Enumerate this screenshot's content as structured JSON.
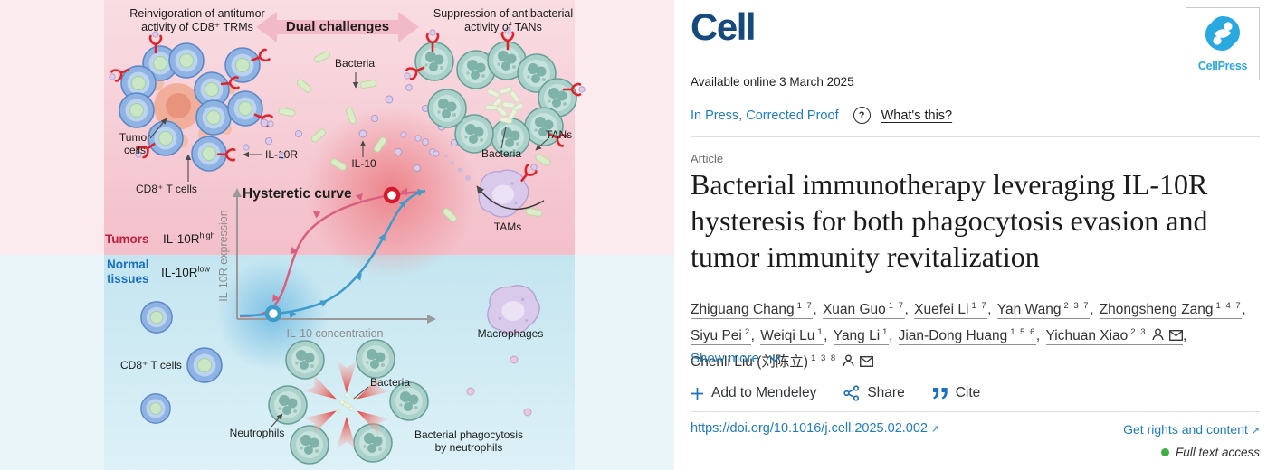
{
  "abstract": {
    "labels": {
      "reinvigoration": "Reinvigoration of antitumor\nactivity of CD8⁺ TRMs",
      "dual_challenges": "Dual challenges",
      "suppression": "Suppression of antibacterial\nactivity of TANs",
      "bacteria_top": "Bacteria",
      "tumor_cells": "Tumor\ncells",
      "cd8_top": "CD8⁺ T cells",
      "il10r": "IL-10R",
      "il10": "IL-10",
      "bacteria_right": "Bacteria",
      "tans": "TANs",
      "hysteretic_curve": "Hysteretic curve",
      "tams": "TAMs",
      "tumors": "Tumors",
      "il10r_high_base": "IL-10R",
      "il10r_high_sup": "high",
      "normal_tissues": "Normal\ntissues",
      "il10r_low_base": "IL-10R",
      "il10r_low_sup": "low",
      "y_axis": "IL-10R expression",
      "x_axis": "IL-10 concentration",
      "macrophages": "Macrophages",
      "cd8_bottom": "CD8⁺ T cells",
      "neutrophils": "Neutrophils",
      "bacteria_bottom": "Bacteria",
      "phagocytosis": "Bacterial phagocytosis\nby neutrophils"
    },
    "colors": {
      "tumor_zone_pink": "#f3bfca",
      "normal_zone_blue": "#c4e5f0",
      "tumors_label": "#c0203a",
      "normal_label": "#1a6fc0",
      "ascending_curve": "#3d9ccc",
      "descending_curve": "#d95f7f",
      "receptor_red": "#e0232a"
    }
  },
  "journal": {
    "name": "Cell",
    "publisher": "CellPress"
  },
  "meta": {
    "available_online": "Available online 3 March 2025",
    "status": "In Press, Corrected Proof",
    "help_icon": "?",
    "whats_this": "What's this?",
    "article_type": "Article"
  },
  "title": "Bacterial immunotherapy leveraging IL-10R hysteresis for both phagocytosis evasion and tumor immunity revitalization",
  "authors": [
    {
      "name": "Zhiguang Chang",
      "sup": "1 7",
      "corresponding": false
    },
    {
      "name": "Xuan Guo",
      "sup": "1 7",
      "corresponding": false
    },
    {
      "name": "Xuefei Li",
      "sup": "1 7",
      "corresponding": false
    },
    {
      "name": "Yan Wang",
      "sup": "2 3 7",
      "corresponding": false
    },
    {
      "name": "Zhongsheng Zang",
      "sup": "1 4 7",
      "corresponding": false
    },
    {
      "name": "Siyu Pei",
      "sup": "2",
      "corresponding": false
    },
    {
      "name": "Weiqi Lu",
      "sup": "1",
      "corresponding": false
    },
    {
      "name": "Yang Li",
      "sup": "1",
      "corresponding": false
    },
    {
      "name": "Jian-Dong Huang",
      "sup": "1 5 6",
      "corresponding": false
    },
    {
      "name": "Yichuan Xiao",
      "sup": "2 3",
      "corresponding": true
    },
    {
      "name": "Chenli Liu (刘陈立)",
      "sup": "1 3 8",
      "corresponding": true
    }
  ],
  "show_more": "Show more",
  "actions": {
    "mendeley": "Add to Mendeley",
    "share": "Share",
    "cite": "Cite"
  },
  "footer": {
    "doi": "https://doi.org/10.1016/j.cell.2025.02.002",
    "rights": "Get rights and content",
    "access": "Full text access"
  }
}
